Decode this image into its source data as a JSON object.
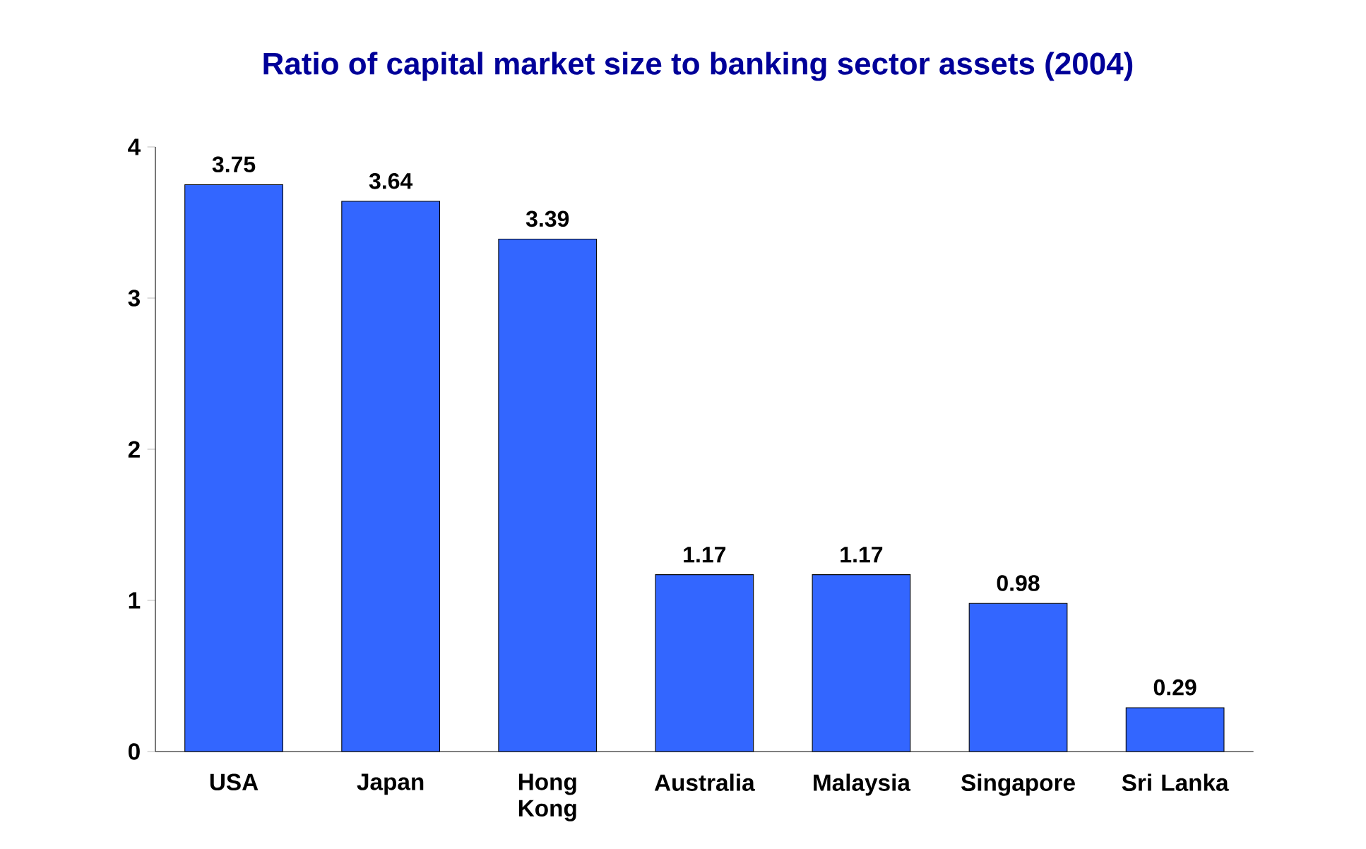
{
  "chart_data": {
    "type": "bar",
    "title": "Ratio of capital market size to banking sector assets (2004)",
    "categories": [
      "USA",
      "Japan",
      "Hong Kong",
      "Australia",
      "Malaysia",
      "Singapore",
      "Sri Lanka"
    ],
    "values": [
      3.75,
      3.64,
      3.39,
      1.17,
      1.17,
      0.98,
      0.29
    ],
    "color": "#3366ff",
    "data_labels": true,
    "ylim": [
      0,
      4
    ],
    "yticks": [
      0,
      1,
      2,
      3,
      4
    ],
    "grid": false
  }
}
